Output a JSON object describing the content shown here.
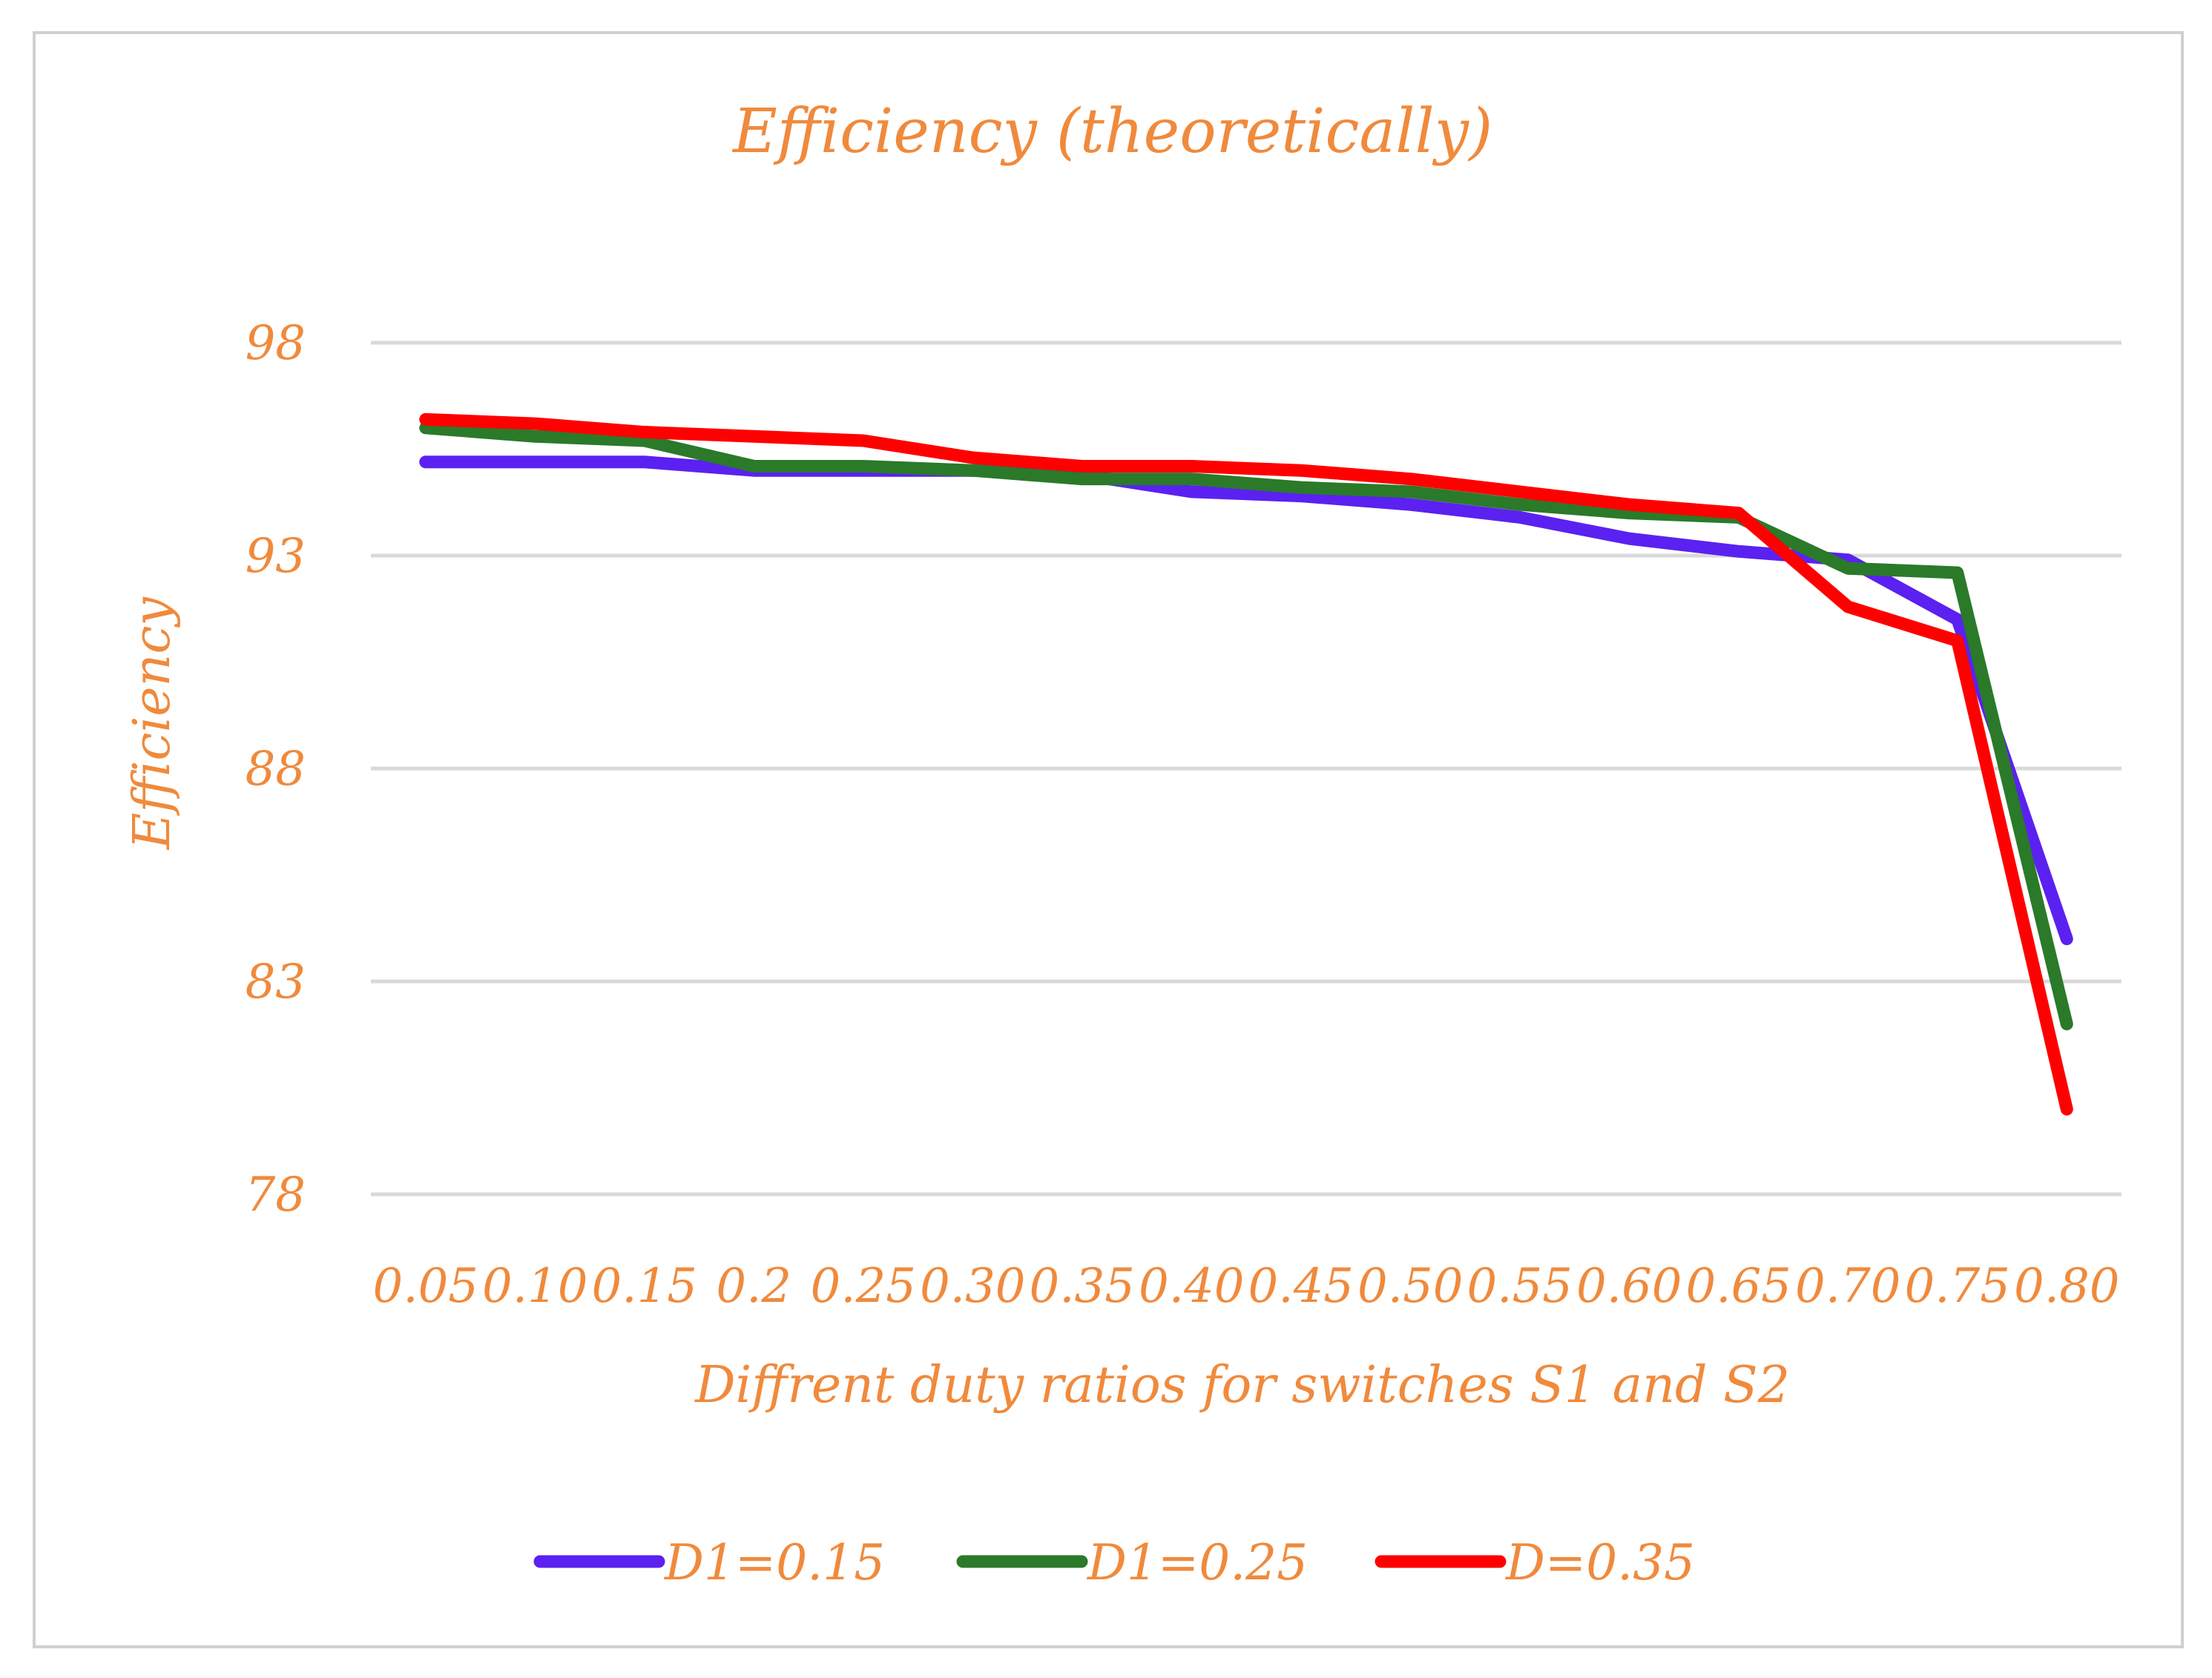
{
  "chart_data": {
    "type": "line",
    "title": "Efficiency (theoretically)",
    "xlabel": "Diffrent duty ratios for switches S1 and S2",
    "ylabel": "Efficiency",
    "categories": [
      "0.05",
      "0.10",
      "0.15",
      "0.2",
      "0.25",
      "0.30",
      "0.35",
      "0.40",
      "0.45",
      "0.50",
      "0.55",
      "0.60",
      "0.65",
      "0.70",
      "0.75",
      "0.80"
    ],
    "y_ticks": [
      78,
      83,
      88,
      93,
      98
    ],
    "ylim": [
      78,
      98
    ],
    "grid": true,
    "legend_position": "bottom",
    "series": [
      {
        "name": "D1=0.15",
        "color": "#5b21f0",
        "values": [
          95.2,
          95.2,
          95.2,
          95.0,
          95.0,
          95.0,
          94.9,
          94.5,
          94.4,
          94.2,
          93.9,
          93.4,
          93.1,
          92.9,
          91.5,
          84.0
        ]
      },
      {
        "name": "D1=0.25",
        "color": "#2a7a2a",
        "values": [
          96.0,
          95.8,
          95.7,
          95.1,
          95.1,
          95.0,
          94.8,
          94.8,
          94.6,
          94.5,
          94.2,
          94.0,
          93.9,
          92.7,
          92.6,
          82.0
        ]
      },
      {
        "name": "D=0.35",
        "color": "#ff0000",
        "values": [
          96.2,
          96.1,
          95.9,
          95.8,
          95.7,
          95.3,
          95.1,
          95.1,
          95.0,
          94.8,
          94.5,
          94.2,
          94.0,
          91.8,
          91.0,
          80.0
        ]
      }
    ]
  }
}
